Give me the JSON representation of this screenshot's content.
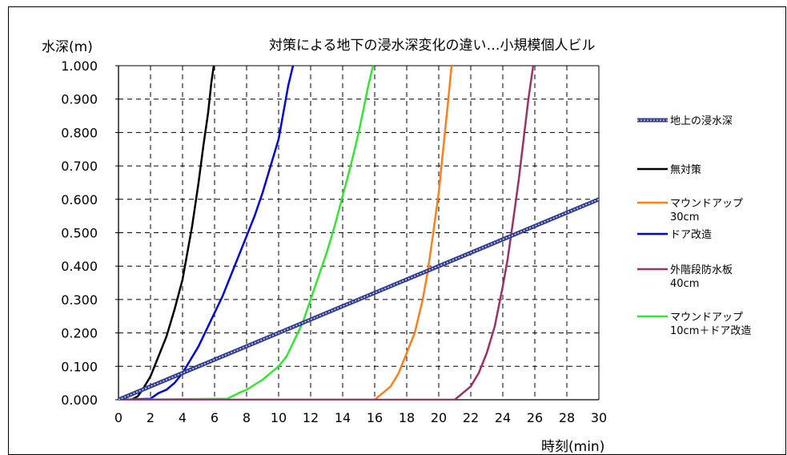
{
  "chart_data": {
    "type": "line",
    "title": "対策による地下の浸水深変化の違い…小規模個人ビル",
    "ylabel": "水深(m)",
    "xlabel": "時刻(min)",
    "xlim": [
      0,
      30
    ],
    "ylim": [
      0,
      1.0
    ],
    "xticks": [
      "0",
      "2",
      "4",
      "6",
      "8",
      "10",
      "12",
      "14",
      "16",
      "18",
      "20",
      "22",
      "24",
      "26",
      "28",
      "30"
    ],
    "yticks": [
      "0.000",
      "0.100",
      "0.200",
      "0.300",
      "0.400",
      "0.500",
      "0.600",
      "0.700",
      "0.800",
      "0.900",
      "1.000"
    ],
    "grid": true,
    "legend_position": "right",
    "series": [
      {
        "name": "地上の浸水深",
        "color": "#2f3b8f",
        "style": "beaded",
        "x": [
          0,
          30
        ],
        "y": [
          0,
          0.6
        ]
      },
      {
        "name": "無対策",
        "color": "#000000",
        "style": "solid",
        "x": [
          0,
          0.8,
          1.2,
          1.5,
          2.0,
          2.5,
          3.0,
          3.5,
          4.0,
          4.3,
          4.6,
          5.0,
          5.3,
          5.6,
          5.8,
          5.95
        ],
        "y": [
          0,
          0,
          0.01,
          0.03,
          0.07,
          0.13,
          0.19,
          0.27,
          0.36,
          0.44,
          0.52,
          0.65,
          0.76,
          0.86,
          0.95,
          1.0
        ]
      },
      {
        "name": "ドア改造",
        "color": "#0000e6",
        "style": "solid",
        "x": [
          0,
          2.0,
          2.5,
          3.0,
          3.5,
          4.0,
          4.5,
          5.0,
          5.5,
          6.0,
          6.5,
          7.0,
          7.5,
          8.0,
          8.5,
          9.0,
          9.5,
          10.0,
          10.3,
          10.6,
          10.9
        ],
        "y": [
          0,
          0.003,
          0.02,
          0.03,
          0.05,
          0.08,
          0.12,
          0.16,
          0.21,
          0.26,
          0.31,
          0.37,
          0.43,
          0.49,
          0.55,
          0.62,
          0.7,
          0.78,
          0.86,
          0.94,
          1.0
        ]
      },
      {
        "name": "マウンドアップ10cm＋ドア改造",
        "color": "#33e633",
        "style": "solid",
        "x": [
          0,
          6.8,
          7.5,
          8.0,
          9.0,
          10.0,
          10.5,
          11.0,
          11.5,
          12.0,
          12.5,
          13.0,
          13.5,
          14.0,
          14.5,
          15.0,
          15.3,
          15.6,
          15.9
        ],
        "y": [
          0,
          0.003,
          0.02,
          0.03,
          0.06,
          0.1,
          0.13,
          0.18,
          0.23,
          0.3,
          0.37,
          0.44,
          0.52,
          0.61,
          0.7,
          0.8,
          0.87,
          0.94,
          1.0
        ]
      },
      {
        "name": "マウンドアップ30cm",
        "color": "#ff7f1a",
        "style": "solid",
        "x": [
          0,
          16.0,
          16.5,
          17.0,
          17.5,
          18.0,
          18.5,
          19.0,
          19.3,
          19.6,
          20.0,
          20.3,
          20.6,
          20.8
        ],
        "y": [
          0,
          0,
          0.02,
          0.04,
          0.08,
          0.14,
          0.2,
          0.3,
          0.38,
          0.48,
          0.62,
          0.76,
          0.9,
          1.0
        ]
      },
      {
        "name": "外階段防水板40cm",
        "color": "#993366",
        "style": "solid",
        "x": [
          0,
          21.0,
          21.5,
          22.0,
          22.5,
          23.0,
          23.5,
          24.0,
          24.3,
          24.6,
          25.0,
          25.3,
          25.6,
          25.9
        ],
        "y": [
          0,
          0,
          0.02,
          0.04,
          0.08,
          0.14,
          0.22,
          0.34,
          0.42,
          0.52,
          0.66,
          0.78,
          0.9,
          1.0
        ]
      }
    ],
    "legend": [
      {
        "series": 0,
        "lines": [
          "地上の浸水深"
        ]
      },
      {
        "series": 1,
        "lines": [
          "無対策"
        ]
      },
      {
        "series": 4,
        "lines": [
          "マウンドアップ",
          "30cm"
        ]
      },
      {
        "series": 2,
        "lines": [
          "ドア改造"
        ]
      },
      {
        "series": 5,
        "lines": [
          "外階段防水板",
          "40cm"
        ]
      },
      {
        "series": 3,
        "lines": [
          "マウンドアップ",
          "10cm＋ドア改造"
        ]
      }
    ]
  }
}
